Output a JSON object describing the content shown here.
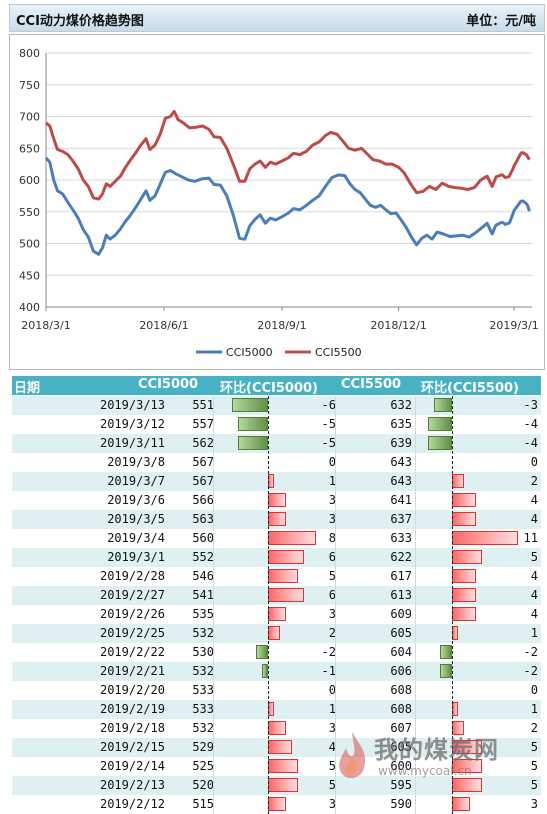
{
  "header": {
    "title": "CCI动力煤价格趋势图",
    "unit": "单位：元/吨"
  },
  "chart_data": {
    "type": "line",
    "x_ticks": [
      "2018/3/1",
      "2018/6/1",
      "2018/9/1",
      "2018/12/1",
      "2019/3/1"
    ],
    "ylim": [
      400,
      800
    ],
    "y_ticks": [
      400,
      450,
      500,
      550,
      600,
      650,
      700,
      750,
      800
    ],
    "grid": true,
    "legend_position": "bottom",
    "series": [
      {
        "name": "CCI5000",
        "color": "#4a7ebb",
        "points": [
          [
            "2018-03-01",
            635
          ],
          [
            "2018-03-04",
            628
          ],
          [
            "2018-03-07",
            600
          ],
          [
            "2018-03-10",
            583
          ],
          [
            "2018-03-14",
            578
          ],
          [
            "2018-03-18",
            565
          ],
          [
            "2018-03-22",
            553
          ],
          [
            "2018-03-26",
            540
          ],
          [
            "2018-03-30",
            522
          ],
          [
            "2018-04-03",
            510
          ],
          [
            "2018-04-07",
            488
          ],
          [
            "2018-04-11",
            483
          ],
          [
            "2018-04-14",
            493
          ],
          [
            "2018-04-17",
            513
          ],
          [
            "2018-04-20",
            507
          ],
          [
            "2018-04-24",
            513
          ],
          [
            "2018-04-28",
            523
          ],
          [
            "2018-05-02",
            535
          ],
          [
            "2018-05-06",
            545
          ],
          [
            "2018-05-10",
            557
          ],
          [
            "2018-05-14",
            570
          ],
          [
            "2018-05-18",
            583
          ],
          [
            "2018-05-21",
            568
          ],
          [
            "2018-05-25",
            575
          ],
          [
            "2018-05-29",
            593
          ],
          [
            "2018-06-02",
            612
          ],
          [
            "2018-06-06",
            615
          ],
          [
            "2018-06-10",
            610
          ],
          [
            "2018-06-15",
            605
          ],
          [
            "2018-06-20",
            600
          ],
          [
            "2018-06-25",
            598
          ],
          [
            "2018-07-01",
            602
          ],
          [
            "2018-07-06",
            603
          ],
          [
            "2018-07-10",
            593
          ],
          [
            "2018-07-15",
            592
          ],
          [
            "2018-07-20",
            575
          ],
          [
            "2018-07-25",
            545
          ],
          [
            "2018-07-30",
            508
          ],
          [
            "2018-08-03",
            507
          ],
          [
            "2018-08-07",
            528
          ],
          [
            "2018-08-11",
            538
          ],
          [
            "2018-08-15",
            545
          ],
          [
            "2018-08-19",
            532
          ],
          [
            "2018-08-23",
            540
          ],
          [
            "2018-08-27",
            537
          ],
          [
            "2018-09-01",
            542
          ],
          [
            "2018-09-06",
            548
          ],
          [
            "2018-09-10",
            555
          ],
          [
            "2018-09-15",
            553
          ],
          [
            "2018-09-20",
            560
          ],
          [
            "2018-09-25",
            568
          ],
          [
            "2018-09-30",
            575
          ],
          [
            "2018-10-05",
            590
          ],
          [
            "2018-10-10",
            604
          ],
          [
            "2018-10-15",
            608
          ],
          [
            "2018-10-20",
            607
          ],
          [
            "2018-10-24",
            594
          ],
          [
            "2018-10-28",
            585
          ],
          [
            "2018-11-01",
            580
          ],
          [
            "2018-11-05",
            570
          ],
          [
            "2018-11-09",
            560
          ],
          [
            "2018-11-13",
            557
          ],
          [
            "2018-11-17",
            560
          ],
          [
            "2018-11-21",
            553
          ],
          [
            "2018-11-25",
            547
          ],
          [
            "2018-11-29",
            548
          ],
          [
            "2018-12-03",
            537
          ],
          [
            "2018-12-07",
            525
          ],
          [
            "2018-12-11",
            510
          ],
          [
            "2018-12-15",
            498
          ],
          [
            "2018-12-19",
            508
          ],
          [
            "2018-12-23",
            513
          ],
          [
            "2018-12-27",
            507
          ],
          [
            "2018-12-31",
            518
          ],
          [
            "2019-01-05",
            515
          ],
          [
            "2019-01-10",
            511
          ],
          [
            "2019-01-15",
            512
          ],
          [
            "2019-01-20",
            513
          ],
          [
            "2019-01-25",
            510
          ],
          [
            "2019-01-30",
            517
          ],
          [
            "2019-02-04",
            525
          ],
          [
            "2019-02-08",
            532
          ],
          [
            "2019-02-12",
            515
          ],
          [
            "2019-02-13",
            520
          ],
          [
            "2019-02-14",
            525
          ],
          [
            "2019-02-15",
            529
          ],
          [
            "2019-02-18",
            532
          ],
          [
            "2019-02-19",
            533
          ],
          [
            "2019-02-20",
            533
          ],
          [
            "2019-02-21",
            532
          ],
          [
            "2019-02-22",
            530
          ],
          [
            "2019-02-25",
            532
          ],
          [
            "2019-02-26",
            535
          ],
          [
            "2019-02-27",
            541
          ],
          [
            "2019-02-28",
            546
          ],
          [
            "2019-03-01",
            552
          ],
          [
            "2019-03-04",
            560
          ],
          [
            "2019-03-05",
            563
          ],
          [
            "2019-03-06",
            566
          ],
          [
            "2019-03-07",
            567
          ],
          [
            "2019-03-08",
            567
          ],
          [
            "2019-03-11",
            562
          ],
          [
            "2019-03-12",
            557
          ],
          [
            "2019-03-13",
            551
          ]
        ]
      },
      {
        "name": "CCI5500",
        "color": "#be4b48",
        "points": [
          [
            "2018-03-01",
            690
          ],
          [
            "2018-03-04",
            685
          ],
          [
            "2018-03-07",
            665
          ],
          [
            "2018-03-10",
            648
          ],
          [
            "2018-03-14",
            645
          ],
          [
            "2018-03-18",
            640
          ],
          [
            "2018-03-22",
            630
          ],
          [
            "2018-03-26",
            618
          ],
          [
            "2018-03-30",
            600
          ],
          [
            "2018-04-03",
            590
          ],
          [
            "2018-04-07",
            572
          ],
          [
            "2018-04-11",
            570
          ],
          [
            "2018-04-14",
            578
          ],
          [
            "2018-04-17",
            594
          ],
          [
            "2018-04-20",
            590
          ],
          [
            "2018-04-24",
            598
          ],
          [
            "2018-04-28",
            606
          ],
          [
            "2018-05-02",
            620
          ],
          [
            "2018-05-06",
            632
          ],
          [
            "2018-05-10",
            643
          ],
          [
            "2018-05-14",
            655
          ],
          [
            "2018-05-18",
            665
          ],
          [
            "2018-05-21",
            648
          ],
          [
            "2018-05-25",
            655
          ],
          [
            "2018-05-29",
            672
          ],
          [
            "2018-06-02",
            697
          ],
          [
            "2018-06-06",
            700
          ],
          [
            "2018-06-09",
            708
          ],
          [
            "2018-06-12",
            695
          ],
          [
            "2018-06-16",
            690
          ],
          [
            "2018-06-21",
            682
          ],
          [
            "2018-06-26",
            683
          ],
          [
            "2018-07-01",
            685
          ],
          [
            "2018-07-06",
            680
          ],
          [
            "2018-07-10",
            668
          ],
          [
            "2018-07-15",
            667
          ],
          [
            "2018-07-20",
            650
          ],
          [
            "2018-07-25",
            625
          ],
          [
            "2018-07-30",
            598
          ],
          [
            "2018-08-03",
            598
          ],
          [
            "2018-08-07",
            618
          ],
          [
            "2018-08-11",
            625
          ],
          [
            "2018-08-15",
            630
          ],
          [
            "2018-08-19",
            620
          ],
          [
            "2018-08-23",
            628
          ],
          [
            "2018-08-27",
            625
          ],
          [
            "2018-09-01",
            630
          ],
          [
            "2018-09-06",
            635
          ],
          [
            "2018-09-10",
            642
          ],
          [
            "2018-09-15",
            640
          ],
          [
            "2018-09-20",
            645
          ],
          [
            "2018-09-25",
            655
          ],
          [
            "2018-09-30",
            660
          ],
          [
            "2018-10-05",
            670
          ],
          [
            "2018-10-09",
            675
          ],
          [
            "2018-10-14",
            672
          ],
          [
            "2018-10-19",
            660
          ],
          [
            "2018-10-23",
            650
          ],
          [
            "2018-10-28",
            647
          ],
          [
            "2018-11-02",
            650
          ],
          [
            "2018-11-07",
            640
          ],
          [
            "2018-11-11",
            632
          ],
          [
            "2018-11-16",
            630
          ],
          [
            "2018-11-21",
            625
          ],
          [
            "2018-11-26",
            625
          ],
          [
            "2018-12-01",
            620
          ],
          [
            "2018-12-05",
            612
          ],
          [
            "2018-12-10",
            595
          ],
          [
            "2018-12-15",
            580
          ],
          [
            "2018-12-20",
            582
          ],
          [
            "2018-12-25",
            590
          ],
          [
            "2018-12-30",
            585
          ],
          [
            "2019-01-04",
            595
          ],
          [
            "2019-01-09",
            590
          ],
          [
            "2019-01-14",
            588
          ],
          [
            "2019-01-19",
            587
          ],
          [
            "2019-01-24",
            585
          ],
          [
            "2019-01-29",
            588
          ],
          [
            "2019-02-03",
            600
          ],
          [
            "2019-02-08",
            606
          ],
          [
            "2019-02-12",
            590
          ],
          [
            "2019-02-13",
            595
          ],
          [
            "2019-02-14",
            600
          ],
          [
            "2019-02-15",
            605
          ],
          [
            "2019-02-18",
            607
          ],
          [
            "2019-02-19",
            608
          ],
          [
            "2019-02-20",
            608
          ],
          [
            "2019-02-21",
            606
          ],
          [
            "2019-02-22",
            604
          ],
          [
            "2019-02-25",
            605
          ],
          [
            "2019-02-26",
            609
          ],
          [
            "2019-02-27",
            613
          ],
          [
            "2019-02-28",
            617
          ],
          [
            "2019-03-01",
            622
          ],
          [
            "2019-03-04",
            633
          ],
          [
            "2019-03-05",
            637
          ],
          [
            "2019-03-06",
            641
          ],
          [
            "2019-03-07",
            643
          ],
          [
            "2019-03-08",
            643
          ],
          [
            "2019-03-11",
            639
          ],
          [
            "2019-03-12",
            635
          ],
          [
            "2019-03-13",
            632
          ]
        ]
      }
    ]
  },
  "table": {
    "headers": [
      "日期",
      "CCI5000",
      "环比(CCI5000)",
      "CCI5500",
      "环比(CCI5500)"
    ],
    "rows": [
      {
        "date": "2019/3/13",
        "v1": "551",
        "c1": "-6",
        "v2": "632",
        "c2": "-3"
      },
      {
        "date": "2019/3/12",
        "v1": "557",
        "c1": "-5",
        "v2": "635",
        "c2": "-4"
      },
      {
        "date": "2019/3/11",
        "v1": "562",
        "c1": "-5",
        "v2": "639",
        "c2": "-4"
      },
      {
        "date": "2019/3/8",
        "v1": "567",
        "c1": "0",
        "v2": "643",
        "c2": "0"
      },
      {
        "date": "2019/3/7",
        "v1": "567",
        "c1": "1",
        "v2": "643",
        "c2": "2"
      },
      {
        "date": "2019/3/6",
        "v1": "566",
        "c1": "3",
        "v2": "641",
        "c2": "4"
      },
      {
        "date": "2019/3/5",
        "v1": "563",
        "c1": "3",
        "v2": "637",
        "c2": "4"
      },
      {
        "date": "2019/3/4",
        "v1": "560",
        "c1": "8",
        "v2": "633",
        "c2": "11"
      },
      {
        "date": "2019/3/1",
        "v1": "552",
        "c1": "6",
        "v2": "622",
        "c2": "5"
      },
      {
        "date": "2019/2/28",
        "v1": "546",
        "c1": "5",
        "v2": "617",
        "c2": "4"
      },
      {
        "date": "2019/2/27",
        "v1": "541",
        "c1": "6",
        "v2": "613",
        "c2": "4"
      },
      {
        "date": "2019/2/26",
        "v1": "535",
        "c1": "3",
        "v2": "609",
        "c2": "4"
      },
      {
        "date": "2019/2/25",
        "v1": "532",
        "c1": "2",
        "v2": "605",
        "c2": "1"
      },
      {
        "date": "2019/2/22",
        "v1": "530",
        "c1": "-2",
        "v2": "604",
        "c2": "-2"
      },
      {
        "date": "2019/2/21",
        "v1": "532",
        "c1": "-1",
        "v2": "606",
        "c2": "-2"
      },
      {
        "date": "2019/2/20",
        "v1": "533",
        "c1": "0",
        "v2": "608",
        "c2": "0"
      },
      {
        "date": "2019/2/19",
        "v1": "533",
        "c1": "1",
        "v2": "608",
        "c2": "1"
      },
      {
        "date": "2019/2/18",
        "v1": "532",
        "c1": "3",
        "v2": "607",
        "c2": "2"
      },
      {
        "date": "2019/2/15",
        "v1": "529",
        "c1": "4",
        "v2": "605",
        "c2": "5"
      },
      {
        "date": "2019/2/14",
        "v1": "525",
        "c1": "5",
        "v2": "600",
        "c2": "5"
      },
      {
        "date": "2019/2/13",
        "v1": "520",
        "c1": "5",
        "v2": "595",
        "c2": "5"
      },
      {
        "date": "2019/2/12",
        "v1": "515",
        "c1": "3",
        "v2": "590",
        "c2": "3"
      }
    ]
  },
  "watermark": {
    "brand": "我的煤炭网",
    "url": "www.mycoal.cn"
  }
}
